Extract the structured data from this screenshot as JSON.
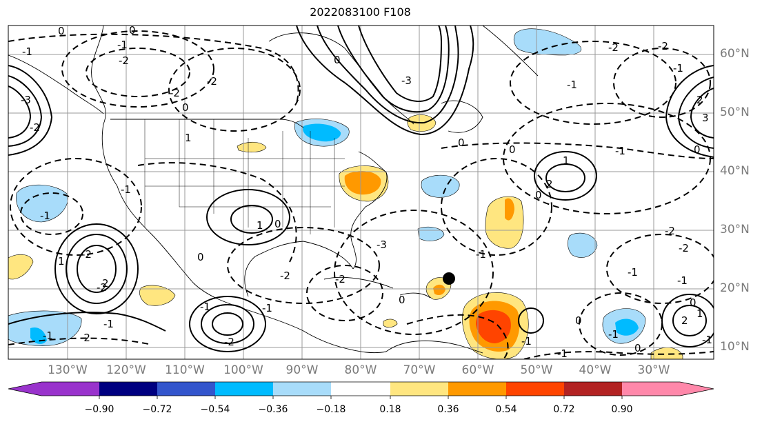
{
  "title": "2022083100 F108",
  "lon_labels": [
    "130°W",
    "120°W",
    "110°W",
    "100°W",
    "90°W",
    "80°W",
    "70°W",
    "60°W",
    "50°W",
    "40°W",
    "30°W"
  ],
  "lat_labels": [
    "60°N",
    "50°N",
    "40°N",
    "30°N",
    "20°N",
    "10°N"
  ],
  "contour_labels": [
    "0",
    "0",
    "-1",
    "-2",
    "-2",
    "-1",
    "0",
    "-3",
    "-2",
    "1",
    "-2",
    "-1",
    "0",
    "0",
    "-1",
    "2",
    "1",
    "-2",
    "-1",
    "-3",
    "-2",
    "-1",
    "-2",
    "-1",
    "-1",
    "0",
    "0",
    "1",
    "2",
    "2",
    "1",
    "0",
    "-1",
    "-2",
    "-1",
    "-1",
    "-2",
    "-2",
    "-3",
    "3",
    "-2",
    "-2",
    "-1",
    "-1",
    "0",
    "2",
    "1",
    "-1",
    "-1",
    "-2",
    "-2",
    "-1",
    "0",
    "-1",
    "0",
    "0",
    "0",
    "0",
    "-1"
  ],
  "colorbar": {
    "ticks": [
      "−0.90",
      "−0.72",
      "−0.54",
      "−0.36",
      "−0.18",
      "0.18",
      "0.36",
      "0.54",
      "0.72",
      "0.90"
    ],
    "colors": [
      "#9933cc",
      "#000080",
      "#3355cc",
      "#00bbff",
      "#a8dcfa",
      "#ffffff",
      "#ffe680",
      "#ff9900",
      "#ff4400",
      "#b22222",
      "#ff88aa"
    ]
  },
  "marker": "storm-center-dot"
}
